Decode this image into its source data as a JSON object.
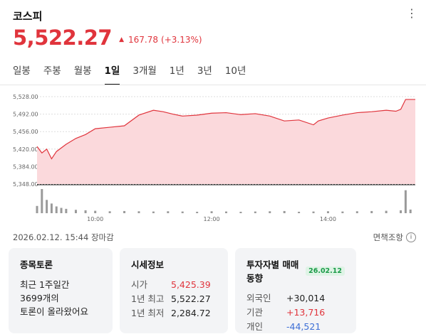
{
  "header": {
    "title": "코스피",
    "more_icon": "⋮"
  },
  "quote": {
    "price": "5,522.27",
    "arrow": "▲",
    "change": "167.78",
    "change_pct": "(+3.13%)",
    "color": "#e0343c"
  },
  "tabs": [
    {
      "label": "일봉",
      "active": false
    },
    {
      "label": "주봉",
      "active": false
    },
    {
      "label": "월봉",
      "active": false
    },
    {
      "label": "1일",
      "active": true
    },
    {
      "label": "3개월",
      "active": false
    },
    {
      "label": "1년",
      "active": false
    },
    {
      "label": "3년",
      "active": false
    },
    {
      "label": "10년",
      "active": false
    }
  ],
  "chart_data": {
    "type": "area",
    "y_ticks": [
      5528,
      5492,
      5456,
      5420,
      5384,
      5348
    ],
    "y_tick_labels": [
      "5,528.00",
      "5,492.00",
      "5,456.00",
      "5,420.00",
      "5,384.00",
      "5,348.00"
    ],
    "ylim": [
      5348,
      5528
    ],
    "x_range": [
      "09:00",
      "15:30"
    ],
    "x_ticks": [
      "10:00",
      "12:00",
      "14:00"
    ],
    "x_tick_times": [
      "10:00",
      "12:00",
      "14:00"
    ],
    "line_color": "#e0343c",
    "fill_color": "#fbd9dc",
    "series": [
      {
        "x": [
          "09:00",
          "09:05",
          "09:10",
          "09:15",
          "09:20",
          "09:30",
          "09:40",
          "09:50",
          "10:00",
          "10:15",
          "10:30",
          "10:45",
          "11:00",
          "11:10",
          "11:20",
          "11:30",
          "11:45",
          "12:00",
          "12:15",
          "12:30",
          "12:45",
          "13:00",
          "13:15",
          "13:30",
          "13:45",
          "13:50",
          "14:00",
          "14:15",
          "14:30",
          "14:45",
          "15:00",
          "15:10",
          "15:15",
          "15:20",
          "15:30"
        ],
        "y": [
          5425.39,
          5412,
          5420,
          5400,
          5415,
          5430,
          5442,
          5450,
          5462,
          5465,
          5468,
          5490,
          5500,
          5497,
          5492,
          5488,
          5490,
          5494,
          5495,
          5491,
          5493,
          5488,
          5478,
          5480,
          5470,
          5478,
          5484,
          5490,
          5495,
          5497,
          5500,
          5498,
          5502,
          5522.27,
          5522.27
        ]
      }
    ],
    "volume": {
      "x": [
        "09:00",
        "09:05",
        "09:10",
        "09:15",
        "09:20",
        "09:25",
        "09:30",
        "09:40",
        "09:50",
        "10:00",
        "10:15",
        "10:30",
        "10:45",
        "11:00",
        "11:15",
        "11:30",
        "11:45",
        "12:00",
        "12:15",
        "12:30",
        "12:45",
        "13:00",
        "13:15",
        "13:30",
        "13:45",
        "14:00",
        "14:15",
        "14:30",
        "14:45",
        "15:00",
        "15:15",
        "15:20",
        "15:25"
      ],
      "y": [
        30,
        100,
        55,
        40,
        28,
        22,
        18,
        14,
        12,
        10,
        8,
        9,
        8,
        7,
        8,
        7,
        6,
        8,
        7,
        6,
        7,
        8,
        9,
        6,
        7,
        8,
        7,
        8,
        9,
        10,
        12,
        95,
        15
      ]
    },
    "volume_ylim": [
      0,
      100
    ]
  },
  "status": {
    "text": "2026.02.12. 15:44 장마감"
  },
  "disclaimer": {
    "label": "면책조항",
    "icon": "i"
  },
  "cards": {
    "discussion": {
      "title": "종목토론",
      "line1": "최근 1주일간",
      "line2": "3699개의",
      "line3": "토론이 올라왔어요"
    },
    "market_info": {
      "title": "시세정보",
      "rows": [
        {
          "label": "시가",
          "value": "5,425.39",
          "color": "#e0343c"
        },
        {
          "label": "1년 최고",
          "value": "5,522.27",
          "color": "#222222"
        },
        {
          "label": "1년 최저",
          "value": "2,284.72",
          "color": "#222222"
        }
      ]
    },
    "investor": {
      "title": "투자자별 매매동향",
      "badge": "26.02.12",
      "rows": [
        {
          "label": "외국인",
          "value": "+30,014",
          "color": "#222222"
        },
        {
          "label": "기관",
          "value": "+13,716",
          "color": "#e0343c"
        },
        {
          "label": "개인",
          "value": "-44,521",
          "color": "#3d6fd6"
        }
      ]
    }
  }
}
